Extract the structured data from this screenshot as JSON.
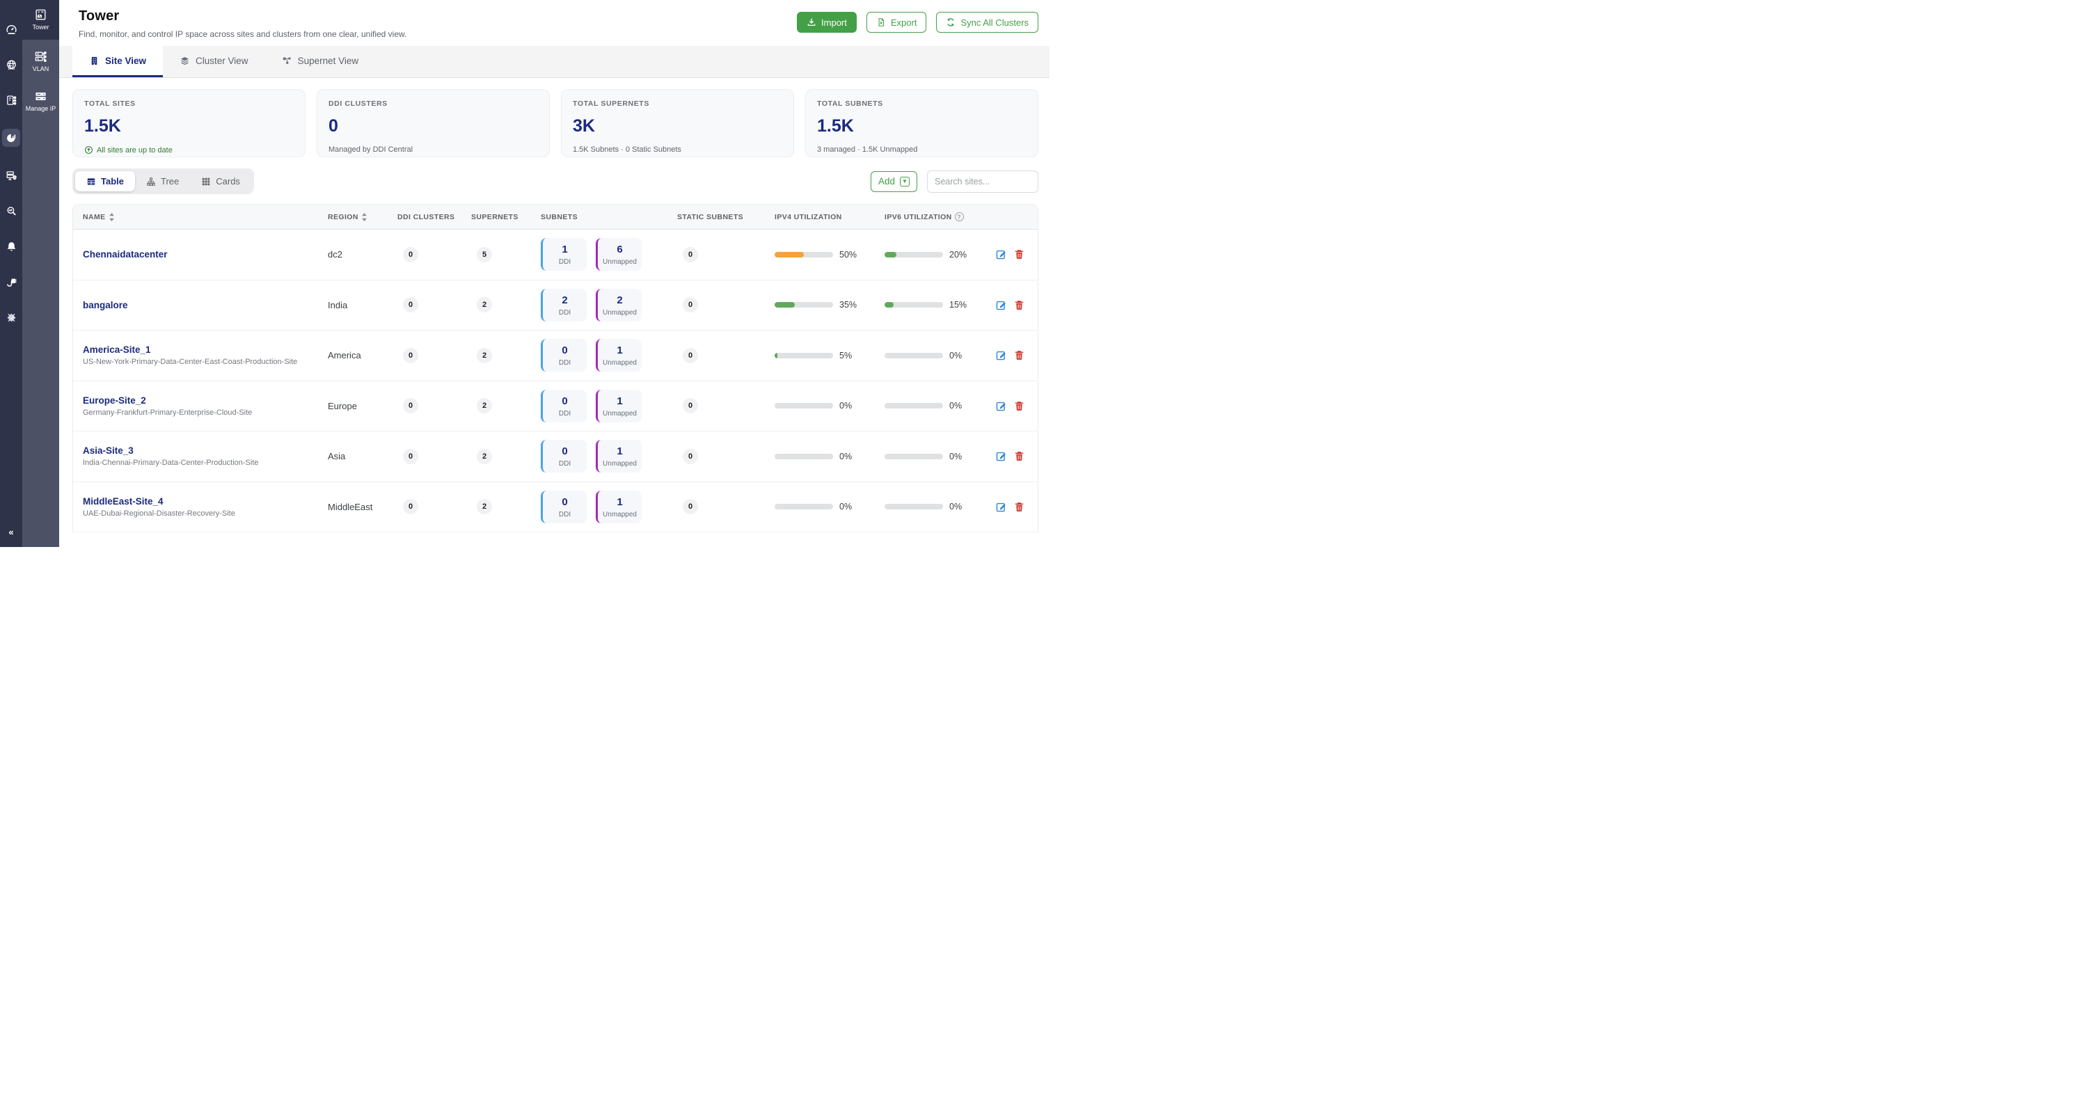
{
  "sidebar": {
    "rail_icons": [
      "dashboard-gauge-icon",
      "dns-globe-icon",
      "dhcp-server-icon",
      "ipam-analytics-icon",
      "server-security-icon",
      "audit-search-icon",
      "alerts-bell-icon",
      "connector-plug-icon",
      "settings-gear-icon"
    ],
    "collapse_glyph": "«",
    "nav_items": [
      {
        "label": "Tower",
        "active": true
      },
      {
        "label": "VLAN",
        "active": false
      },
      {
        "label": "Manage IP",
        "active": false
      }
    ]
  },
  "header": {
    "title": "Tower",
    "subtitle": "Find, monitor, and control IP space across sites and clusters from one clear, unified view.",
    "actions": {
      "import": "Import",
      "export": "Export",
      "sync": "Sync All Clusters"
    }
  },
  "tabs": [
    {
      "label": "Site View",
      "active": true
    },
    {
      "label": "Cluster View",
      "active": false
    },
    {
      "label": "Supernet View",
      "active": false
    }
  ],
  "stats_cards": [
    {
      "label": "TOTAL SITES",
      "value": "1.5K",
      "footer": "All sites are up to date",
      "footer_style": "success"
    },
    {
      "label": "DDI CLUSTERS",
      "value": "0",
      "footer": "Managed by DDI Central",
      "footer_style": "plain"
    },
    {
      "label": "TOTAL SUPERNETS",
      "value": "3K",
      "footer": "1.5K Subnets · 0 Static Subnets",
      "footer_style": "plain"
    },
    {
      "label": "TOTAL SUBNETS",
      "value": "1.5K",
      "footer": "3 managed · 1.5K Unmapped",
      "footer_style": "plain"
    }
  ],
  "view_toggle": [
    {
      "label": "Table",
      "active": true
    },
    {
      "label": "Tree",
      "active": false
    },
    {
      "label": "Cards",
      "active": false
    }
  ],
  "toolbar": {
    "add_label": "Add",
    "search_placeholder": "Search sites..."
  },
  "table": {
    "columns": [
      "NAME",
      "REGION",
      "DDI CLUSTERS",
      "SUPERNETS",
      "SUBNETS",
      "STATIC SUBNETS",
      "IPV4 UTILIZATION",
      "IPV6 UTILIZATION"
    ],
    "rows": [
      {
        "name": "Chennaidatacenter",
        "subtitle": "",
        "region": "dc2",
        "ddi_clusters": "0",
        "supernets": "5",
        "subnets": {
          "ddi": "1",
          "unmapped": "6"
        },
        "static_subnets": "0",
        "ipv4": {
          "pct": 50,
          "label": "50%",
          "color": "#f2a33c"
        },
        "ipv6": {
          "pct": 20,
          "label": "20%",
          "color": "#61a85c"
        }
      },
      {
        "name": "bangalore",
        "subtitle": "",
        "region": "India",
        "ddi_clusters": "0",
        "supernets": "2",
        "subnets": {
          "ddi": "2",
          "unmapped": "2"
        },
        "static_subnets": "0",
        "ipv4": {
          "pct": 35,
          "label": "35%",
          "color": "#61a85c"
        },
        "ipv6": {
          "pct": 15,
          "label": "15%",
          "color": "#61a85c"
        }
      },
      {
        "name": "America-Site_1",
        "subtitle": "US-New-York-Primary-Data-Center-East-Coast-Production-Site",
        "region": "America",
        "ddi_clusters": "0",
        "supernets": "2",
        "subnets": {
          "ddi": "0",
          "unmapped": "1"
        },
        "static_subnets": "0",
        "ipv4": {
          "pct": 5,
          "label": "5%",
          "color": "#61a85c"
        },
        "ipv6": {
          "pct": 0,
          "label": "0%",
          "color": "#61a85c"
        }
      },
      {
        "name": "Europe-Site_2",
        "subtitle": "Germany-Frankfurt-Primary-Enterprise-Cloud-Site",
        "region": "Europe",
        "ddi_clusters": "0",
        "supernets": "2",
        "subnets": {
          "ddi": "0",
          "unmapped": "1"
        },
        "static_subnets": "0",
        "ipv4": {
          "pct": 0,
          "label": "0%",
          "color": "#61a85c"
        },
        "ipv6": {
          "pct": 0,
          "label": "0%",
          "color": "#61a85c"
        }
      },
      {
        "name": "Asia-Site_3",
        "subtitle": "India-Chennai-Primary-Data-Center-Production-Site",
        "region": "Asia",
        "ddi_clusters": "0",
        "supernets": "2",
        "subnets": {
          "ddi": "0",
          "unmapped": "1"
        },
        "static_subnets": "0",
        "ipv4": {
          "pct": 0,
          "label": "0%",
          "color": "#61a85c"
        },
        "ipv6": {
          "pct": 0,
          "label": "0%",
          "color": "#61a85c"
        }
      },
      {
        "name": "MiddleEast-Site_4",
        "subtitle": "UAE-Dubai-Regional-Disaster-Recovery-Site",
        "region": "MiddleEast",
        "ddi_clusters": "0",
        "supernets": "2",
        "subnets": {
          "ddi": "0",
          "unmapped": "1"
        },
        "static_subnets": "0",
        "ipv4": {
          "pct": 0,
          "label": "0%",
          "color": "#61a85c"
        },
        "ipv6": {
          "pct": 0,
          "label": "0%",
          "color": "#61a85c"
        }
      }
    ]
  },
  "colors": {
    "accent_navy": "#1b2a80",
    "brand_green": "#43a047",
    "success_text": "#2e7d32",
    "bar_orange": "#f2a33c",
    "bar_green": "#61a85c",
    "bar_track": "#e0e1e3",
    "chip_ddi_border": "#4aa3e8",
    "chip_unmapped_border": "#a12bb8",
    "edit_blue": "#2d87d8",
    "delete_red": "#cf3a2e",
    "rail_bg": "#2e3349",
    "subnav_bg": "#4c5166"
  }
}
